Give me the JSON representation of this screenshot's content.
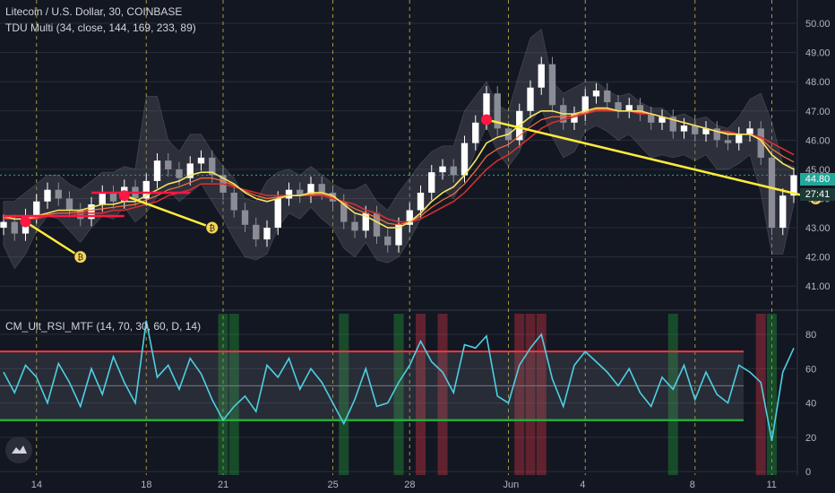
{
  "header": {
    "title": "Litecoin / U.S. Dollar, 30, COINBASE",
    "study": "TDU Multi (34, close, 144, 169, 233, 89)",
    "rsi_study": "CM_Ult_RSI_MTF (14, 70, 30, 60, D, 14)"
  },
  "price_badges": {
    "last_price": "44.80",
    "countdown": "27:41"
  },
  "colors": {
    "background": "#131722",
    "grid": "#2a2e39",
    "up_candle": "#ffffff",
    "down_candle": "#8a8d96",
    "ema_fast": "#f5e663",
    "ema_slow": "#d32f2f",
    "ema_mid": "#ff7043",
    "band_fill": "#5d606b",
    "trendline": "#ffeb3b",
    "marker": "#ff1744",
    "rsi_line": "#4dd0e1",
    "rsi_upper": "#f23645",
    "rsi_lower": "#22ab3a",
    "rsi_mid": "#787b86",
    "badge": "#26a69a",
    "day_separator": "#e0d14a"
  },
  "chart_data": [
    {
      "type": "candlestick",
      "name_printed": "Litecoin / U.S. Dollar",
      "y_axis_ticks": [
        "41.00",
        "42.00",
        "43.00",
        "44.00",
        "45.00",
        "46.00",
        "47.00",
        "48.00",
        "49.00",
        "50.00"
      ],
      "ylim": [
        40.3,
        50.8
      ],
      "x_tick_labels": [
        "14",
        "18",
        "21",
        "25",
        "28",
        "Jun",
        "4",
        "8",
        "11"
      ],
      "x_tick_index": [
        3,
        13,
        20,
        30,
        37,
        46,
        53,
        63,
        70
      ],
      "grid": true,
      "close_series": [
        43.2,
        42.8,
        43.4,
        43.9,
        44.3,
        44.0,
        43.6,
        43.3,
        43.8,
        44.2,
        43.9,
        44.4,
        44.0,
        44.6,
        45.3,
        45.0,
        44.7,
        45.2,
        45.4,
        44.8,
        44.2,
        43.6,
        43.1,
        42.6,
        43.0,
        44.0,
        44.3,
        44.1,
        44.5,
        44.2,
        43.9,
        43.2,
        42.9,
        43.5,
        42.7,
        42.4,
        43.1,
        43.6,
        44.2,
        44.9,
        45.1,
        44.8,
        45.9,
        46.6,
        47.6,
        46.4,
        46.0,
        47.0,
        47.8,
        48.6,
        47.2,
        46.6,
        46.9,
        47.5,
        47.7,
        47.3,
        47.0,
        47.2,
        46.9,
        46.6,
        46.8,
        46.3,
        46.5,
        46.2,
        46.4,
        46.0,
        45.9,
        46.2,
        46.4,
        45.4,
        43.0,
        44.1,
        44.8
      ],
      "ema_fast": [
        43.4,
        43.3,
        43.3,
        43.4,
        43.5,
        43.6,
        43.6,
        43.6,
        43.7,
        43.8,
        43.8,
        43.9,
        43.9,
        44.1,
        44.3,
        44.5,
        44.6,
        44.8,
        44.9,
        44.9,
        44.7,
        44.5,
        44.2,
        44.0,
        43.9,
        44.0,
        44.1,
        44.1,
        44.2,
        44.2,
        44.1,
        43.8,
        43.5,
        43.4,
        43.2,
        43.0,
        43.0,
        43.2,
        43.5,
        43.9,
        44.2,
        44.4,
        44.8,
        45.3,
        45.9,
        46.1,
        46.2,
        46.5,
        46.8,
        47.0,
        47.0,
        46.9,
        46.9,
        47.0,
        47.1,
        47.1,
        47.0,
        47.0,
        47.0,
        46.9,
        46.8,
        46.7,
        46.6,
        46.5,
        46.4,
        46.3,
        46.2,
        46.2,
        46.2,
        46.0,
        45.5,
        45.2,
        45.0
      ],
      "ema_slow": [
        43.3,
        43.3,
        43.3,
        43.3,
        43.4,
        43.4,
        43.4,
        43.5,
        43.5,
        43.5,
        43.6,
        43.6,
        43.7,
        43.8,
        43.9,
        44.1,
        44.2,
        44.3,
        44.5,
        44.5,
        44.5,
        44.4,
        44.3,
        44.2,
        44.1,
        44.1,
        44.1,
        44.1,
        44.1,
        44.1,
        44.0,
        43.9,
        43.8,
        43.6,
        43.5,
        43.3,
        43.2,
        43.2,
        43.3,
        43.5,
        43.7,
        43.9,
        44.2,
        44.6,
        45.0,
        45.3,
        45.5,
        45.8,
        46.1,
        46.4,
        46.6,
        46.7,
        46.8,
        46.9,
        47.0,
        47.0,
        47.0,
        47.0,
        46.9,
        46.9,
        46.8,
        46.7,
        46.6,
        46.5,
        46.4,
        46.3,
        46.3,
        46.2,
        46.2,
        46.1,
        45.9,
        45.7,
        45.5
      ],
      "band_upper": [
        43.9,
        43.9,
        44.2,
        44.5,
        44.8,
        44.8,
        44.5,
        44.3,
        44.6,
        44.9,
        44.9,
        45.1,
        45.0,
        47.5,
        47.5,
        46.0,
        45.6,
        46.2,
        46.2,
        45.6,
        45.1,
        44.7,
        44.0,
        43.9,
        44.6,
        44.9,
        45.0,
        44.8,
        45.1,
        44.8,
        44.5,
        44.3,
        44.3,
        44.5,
        43.9,
        43.6,
        44.2,
        44.7,
        45.2,
        45.6,
        45.8,
        45.8,
        47.0,
        47.5,
        48.0,
        47.2,
        47.0,
        48.3,
        49.5,
        49.8,
        48.0,
        47.6,
        47.8,
        48.0,
        48.0,
        47.7,
        47.5,
        47.6,
        47.3,
        47.1,
        47.1,
        46.8,
        46.9,
        46.7,
        46.8,
        46.5,
        46.4,
        46.8,
        47.4,
        47.6,
        46.6,
        45.2,
        45.1
      ],
      "band_lower": [
        42.4,
        41.6,
        42.1,
        42.9,
        43.4,
        43.3,
        42.9,
        42.5,
        43.0,
        43.4,
        43.3,
        43.7,
        43.2,
        43.5,
        44.1,
        44.3,
        43.9,
        44.2,
        44.5,
        43.9,
        43.3,
        42.6,
        42.0,
        41.9,
        42.1,
        43.0,
        43.5,
        43.3,
        43.7,
        43.3,
        43.0,
        42.3,
        42.0,
        42.5,
        41.9,
        41.8,
        42.0,
        42.6,
        43.3,
        44.0,
        44.3,
        44.0,
        44.7,
        45.6,
        46.5,
        45.6,
        45.1,
        45.6,
        46.6,
        47.1,
        46.1,
        45.4,
        45.6,
        46.3,
        46.5,
        46.3,
        46.0,
        46.2,
        45.8,
        45.4,
        45.5,
        45.4,
        45.5,
        45.3,
        45.5,
        45.0,
        45.0,
        45.2,
        45.5,
        44.2,
        42.1,
        42.1,
        43.8
      ],
      "markers": [
        {
          "index": 2,
          "value": 43.2
        },
        {
          "index": 11,
          "value": 44.1
        },
        {
          "index": 44,
          "value": 46.7
        }
      ],
      "trendlines": [
        {
          "from_index": 2,
          "from_value": 43.2,
          "to_index": 7,
          "to_value": 42.0
        },
        {
          "from_index": 11,
          "from_value": 44.1,
          "to_index": 19,
          "to_value": 43.0
        },
        {
          "from_index": 44,
          "from_value": 46.7,
          "to_index": 74,
          "to_value": 44.0
        }
      ],
      "horizontal_levels": [
        {
          "from_index": 0,
          "to_index": 11,
          "value": 43.4
        },
        {
          "from_index": 8,
          "to_index": 17,
          "value": 44.2
        }
      ],
      "coin_icons": [
        {
          "index": 7,
          "value": 42.0,
          "label": "₿"
        },
        {
          "index": 19,
          "value": 43.0,
          "label": "₿"
        },
        {
          "index": 74,
          "value": 44.0,
          "label": "₿"
        }
      ]
    },
    {
      "type": "line",
      "name_printed": "CM_Ult_RSI_MTF",
      "y_axis_ticks": [
        "0",
        "20",
        "40",
        "60",
        "80"
      ],
      "ylim": [
        -2,
        92
      ],
      "upper_band": 70,
      "lower_band": 30,
      "mid_line": 50,
      "rsi_values": [
        58,
        46,
        62,
        55,
        40,
        63,
        52,
        38,
        60,
        45,
        67,
        52,
        40,
        88,
        55,
        62,
        48,
        66,
        57,
        42,
        30,
        38,
        44,
        35,
        62,
        55,
        66,
        48,
        60,
        52,
        40,
        28,
        42,
        60,
        38,
        40,
        52,
        62,
        76,
        64,
        58,
        46,
        74,
        72,
        79,
        44,
        40,
        62,
        72,
        80,
        54,
        38,
        62,
        70,
        64,
        58,
        50,
        60,
        46,
        38,
        55,
        48,
        62,
        42,
        58,
        45,
        40,
        62,
        58,
        52,
        18,
        58,
        72
      ],
      "red_zone_index": [
        38,
        40,
        47,
        48,
        49,
        69
      ],
      "green_zone_index": [
        20,
        21,
        31,
        36,
        61,
        70
      ]
    }
  ]
}
